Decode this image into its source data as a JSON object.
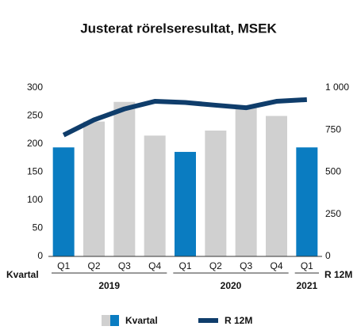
{
  "chart_data": {
    "type": "bar",
    "title": "Justerat rörelseresultat, MSEK",
    "categories": [
      "Q1",
      "Q2",
      "Q3",
      "Q4",
      "Q1",
      "Q2",
      "Q3",
      "Q4",
      "Q1"
    ],
    "x_groups": [
      {
        "label": "2019",
        "count": 4
      },
      {
        "label": "2020",
        "count": 4
      },
      {
        "label": "2021",
        "count": 1
      }
    ],
    "x_label_left": "Kvartal",
    "x_label_right": "R 12M",
    "series": [
      {
        "name": "Kvartal",
        "type": "bar",
        "colors": [
          "#0a7cc1",
          "#d0d0d0",
          "#d0d0d0",
          "#d0d0d0",
          "#0a7cc1",
          "#d0d0d0",
          "#d0d0d0",
          "#d0d0d0",
          "#0a7cc1"
        ],
        "values": [
          194,
          240,
          275,
          215,
          186,
          224,
          268,
          250,
          194
        ]
      },
      {
        "name": "R 12M",
        "type": "line",
        "axis": "y2",
        "color": "#0f3d6b",
        "values": [
          720,
          810,
          875,
          920,
          913,
          897,
          882,
          920,
          930
        ]
      }
    ],
    "ylim": [
      0,
      300
    ],
    "yticks": [
      0,
      50,
      100,
      150,
      200,
      250,
      300
    ],
    "y2lim": [
      0,
      1000
    ],
    "y2ticks": [
      0,
      250,
      500,
      750,
      {
        "value": 1000,
        "label": "1 000"
      }
    ]
  }
}
